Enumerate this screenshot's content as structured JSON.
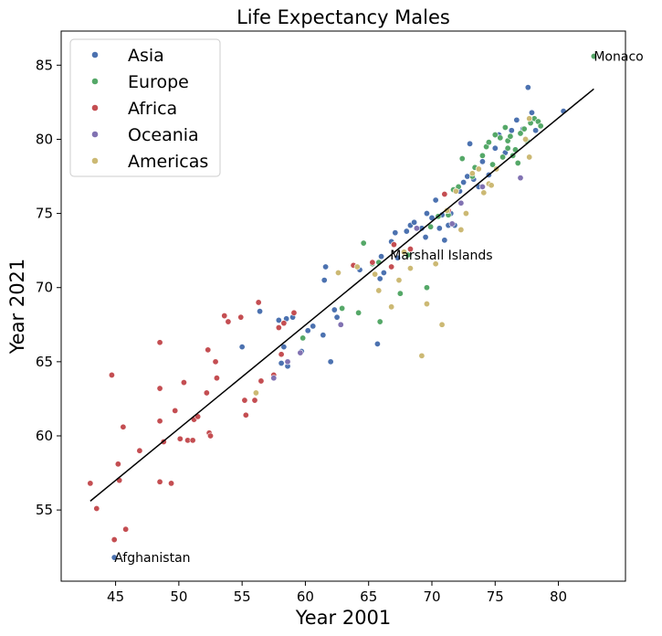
{
  "chart_data": {
    "type": "scatter",
    "title": "Life Expectancy Males",
    "xlabel": "Year 2001",
    "ylabel": "Year 2021",
    "xlim": [
      40.7,
      85.3
    ],
    "ylim": [
      50.2,
      87.3
    ],
    "xticks": [
      45,
      50,
      55,
      60,
      65,
      70,
      75,
      80
    ],
    "yticks": [
      55,
      60,
      65,
      70,
      75,
      80,
      85
    ],
    "grid": false,
    "legend": "top-left",
    "point_edge_color": "#ffffff",
    "trend_line": {
      "x": [
        43.0,
        82.8
      ],
      "y": [
        55.6,
        83.4
      ],
      "color": "#000000"
    },
    "annotations": [
      {
        "text": "Monaco",
        "x": 82.8,
        "y": 85.6
      },
      {
        "text": "Marshall Islands",
        "x": 66.7,
        "y": 72.2
      },
      {
        "text": "Afghanistan",
        "x": 44.9,
        "y": 51.8
      }
    ],
    "series": [
      {
        "name": "Asia",
        "color": "#4c72b0",
        "points": [
          [
            44.9,
            51.8
          ],
          [
            55.0,
            66.0
          ],
          [
            56.4,
            68.4
          ],
          [
            57.9,
            67.8
          ],
          [
            58.1,
            64.9
          ],
          [
            58.3,
            66.0
          ],
          [
            58.5,
            67.9
          ],
          [
            58.6,
            64.7
          ],
          [
            59.0,
            68.0
          ],
          [
            59.7,
            65.7
          ],
          [
            60.2,
            67.1
          ],
          [
            60.6,
            67.4
          ],
          [
            61.4,
            66.8
          ],
          [
            61.5,
            70.5
          ],
          [
            61.6,
            71.4
          ],
          [
            62.0,
            65.0
          ],
          [
            62.3,
            68.5
          ],
          [
            62.5,
            68.0
          ],
          [
            64.3,
            71.2
          ],
          [
            65.7,
            66.2
          ],
          [
            65.9,
            70.6
          ],
          [
            66.0,
            72.1
          ],
          [
            66.2,
            71.0
          ],
          [
            66.8,
            73.1
          ],
          [
            67.1,
            73.7
          ],
          [
            67.3,
            72.0
          ],
          [
            68.0,
            73.8
          ],
          [
            68.3,
            74.2
          ],
          [
            68.6,
            74.4
          ],
          [
            69.2,
            74.0
          ],
          [
            69.5,
            73.4
          ],
          [
            69.6,
            75.0
          ],
          [
            70.0,
            74.7
          ],
          [
            70.3,
            75.9
          ],
          [
            70.6,
            74.0
          ],
          [
            70.8,
            74.9
          ],
          [
            71.0,
            73.2
          ],
          [
            71.3,
            74.2
          ],
          [
            71.5,
            75.0
          ],
          [
            71.8,
            74.2
          ],
          [
            72.2,
            76.5
          ],
          [
            72.5,
            77.1
          ],
          [
            72.8,
            77.5
          ],
          [
            73.0,
            79.7
          ],
          [
            73.3,
            77.3
          ],
          [
            73.7,
            76.8
          ],
          [
            74.0,
            78.5
          ],
          [
            74.5,
            77.6
          ],
          [
            75.0,
            79.4
          ],
          [
            75.3,
            80.3
          ],
          [
            75.8,
            79.1
          ],
          [
            76.3,
            80.6
          ],
          [
            76.7,
            81.3
          ],
          [
            77.2,
            80.7
          ],
          [
            77.6,
            83.5
          ],
          [
            77.9,
            81.8
          ],
          [
            78.2,
            80.6
          ],
          [
            80.4,
            81.9
          ]
        ]
      },
      {
        "name": "Europe",
        "color": "#55a868",
        "points": [
          [
            59.8,
            66.6
          ],
          [
            62.9,
            68.6
          ],
          [
            64.2,
            68.3
          ],
          [
            64.6,
            73.0
          ],
          [
            65.3,
            71.6
          ],
          [
            65.8,
            71.7
          ],
          [
            65.9,
            67.7
          ],
          [
            67.5,
            69.6
          ],
          [
            68.1,
            72.2
          ],
          [
            69.6,
            70.0
          ],
          [
            69.9,
            74.1
          ],
          [
            70.5,
            74.8
          ],
          [
            71.3,
            74.9
          ],
          [
            71.7,
            76.6
          ],
          [
            72.1,
            76.8
          ],
          [
            72.4,
            78.7
          ],
          [
            73.2,
            77.5
          ],
          [
            73.4,
            78.1
          ],
          [
            74.0,
            78.9
          ],
          [
            74.3,
            79.5
          ],
          [
            74.5,
            79.8
          ],
          [
            74.8,
            78.3
          ],
          [
            75.0,
            80.3
          ],
          [
            75.4,
            80.1
          ],
          [
            75.6,
            78.8
          ],
          [
            75.8,
            80.8
          ],
          [
            76.0,
            79.4
          ],
          [
            76.0,
            79.9
          ],
          [
            76.2,
            80.2
          ],
          [
            76.4,
            78.9
          ],
          [
            76.6,
            79.3
          ],
          [
            76.8,
            78.4
          ],
          [
            77.0,
            80.4
          ],
          [
            77.3,
            80.7
          ],
          [
            77.5,
            79.9
          ],
          [
            77.8,
            81.1
          ],
          [
            78.1,
            81.4
          ],
          [
            78.4,
            81.2
          ],
          [
            78.6,
            80.9
          ],
          [
            82.8,
            85.6
          ]
        ]
      },
      {
        "name": "Africa",
        "color": "#c44e52",
        "points": [
          [
            43.0,
            56.8
          ],
          [
            43.5,
            55.1
          ],
          [
            44.7,
            64.1
          ],
          [
            44.9,
            53.0
          ],
          [
            45.2,
            58.1
          ],
          [
            45.3,
            57.0
          ],
          [
            45.6,
            60.6
          ],
          [
            45.8,
            53.7
          ],
          [
            46.9,
            59.0
          ],
          [
            48.5,
            66.3
          ],
          [
            48.5,
            63.2
          ],
          [
            48.5,
            61.0
          ],
          [
            48.5,
            56.9
          ],
          [
            48.8,
            59.6
          ],
          [
            49.4,
            56.8
          ],
          [
            49.7,
            61.7
          ],
          [
            50.1,
            59.8
          ],
          [
            50.4,
            63.6
          ],
          [
            50.7,
            59.7
          ],
          [
            51.1,
            59.7
          ],
          [
            51.2,
            61.1
          ],
          [
            51.5,
            61.3
          ],
          [
            52.2,
            62.9
          ],
          [
            52.3,
            65.8
          ],
          [
            52.4,
            60.2
          ],
          [
            52.5,
            60.0
          ],
          [
            52.9,
            65.0
          ],
          [
            53.0,
            63.9
          ],
          [
            53.6,
            68.1
          ],
          [
            53.9,
            67.7
          ],
          [
            54.9,
            68.0
          ],
          [
            55.2,
            62.4
          ],
          [
            55.3,
            61.4
          ],
          [
            56.0,
            62.4
          ],
          [
            56.3,
            69.0
          ],
          [
            56.5,
            63.7
          ],
          [
            57.5,
            64.1
          ],
          [
            57.9,
            67.3
          ],
          [
            58.1,
            65.5
          ],
          [
            58.3,
            67.6
          ],
          [
            59.1,
            68.3
          ],
          [
            63.8,
            71.5
          ],
          [
            65.3,
            71.7
          ],
          [
            66.8,
            71.4
          ],
          [
            67.0,
            72.9
          ],
          [
            68.3,
            72.6
          ],
          [
            71.0,
            76.3
          ],
          [
            71.3,
            75.2
          ]
        ]
      },
      {
        "name": "Oceania",
        "color": "#8172b2",
        "points": [
          [
            57.5,
            63.9
          ],
          [
            58.6,
            65.0
          ],
          [
            59.6,
            65.6
          ],
          [
            62.8,
            67.5
          ],
          [
            68.8,
            74.0
          ],
          [
            71.6,
            74.3
          ],
          [
            72.3,
            75.7
          ],
          [
            74.0,
            76.8
          ],
          [
            77.0,
            77.4
          ]
        ]
      },
      {
        "name": "Americas",
        "color": "#ccb974",
        "points": [
          [
            56.1,
            62.9
          ],
          [
            62.6,
            71.0
          ],
          [
            64.1,
            71.4
          ],
          [
            65.5,
            70.9
          ],
          [
            65.8,
            69.8
          ],
          [
            66.8,
            68.7
          ],
          [
            67.4,
            70.5
          ],
          [
            67.8,
            72.4
          ],
          [
            68.3,
            71.3
          ],
          [
            69.2,
            65.4
          ],
          [
            69.6,
            68.9
          ],
          [
            70.3,
            71.6
          ],
          [
            70.8,
            67.5
          ],
          [
            71.2,
            75.2
          ],
          [
            71.9,
            76.5
          ],
          [
            72.3,
            73.9
          ],
          [
            72.7,
            75.0
          ],
          [
            73.2,
            77.7
          ],
          [
            73.7,
            78.0
          ],
          [
            74.1,
            76.4
          ],
          [
            74.5,
            77.0
          ],
          [
            74.7,
            76.9
          ],
          [
            75.1,
            78.0
          ],
          [
            77.4,
            80.0
          ],
          [
            77.7,
            81.4
          ],
          [
            77.7,
            78.8
          ]
        ]
      }
    ]
  }
}
